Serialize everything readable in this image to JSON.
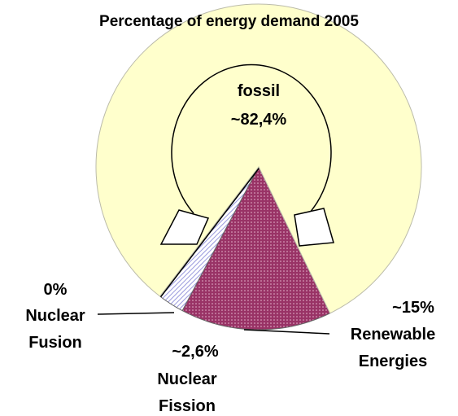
{
  "chart_data": {
    "type": "pie",
    "title": "Percentage of energy demand 2005",
    "categories": [
      "fossil",
      "Renewable Energies",
      "Nuclear Fission",
      "Nuclear Fusion"
    ],
    "values": [
      82.4,
      15,
      2.6,
      0
    ],
    "value_labels": [
      "~82,4%",
      "~15%",
      "~2,6%",
      "0%"
    ],
    "colors": [
      "#ffffcc",
      "#993366",
      "#ccccff",
      "#000000"
    ]
  }
}
